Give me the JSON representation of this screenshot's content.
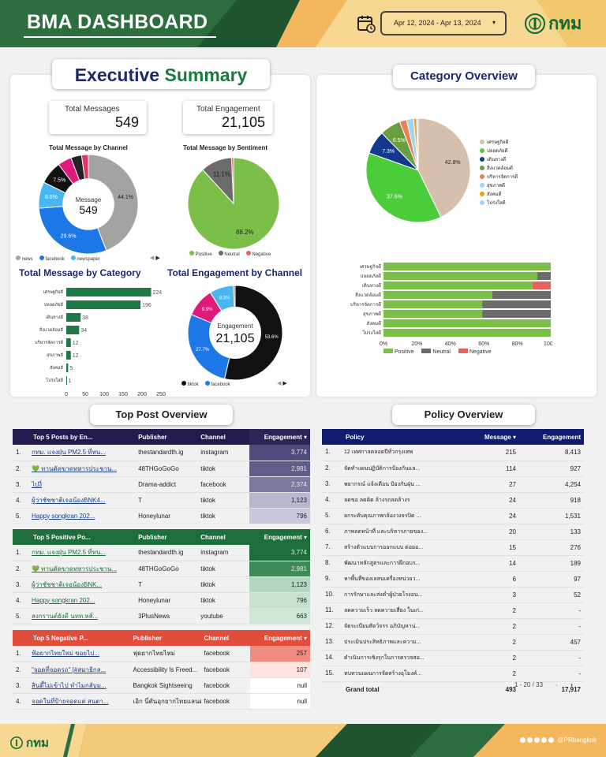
{
  "header": {
    "title": "BMA DASHBOARD",
    "date_range": "Apr 12, 2024 - Apr 13, 2024",
    "logo_text": "กทม"
  },
  "exec": {
    "title_a": "Executive",
    "title_b": "Summary"
  },
  "kpis": {
    "total_messages_label": "Total Messages",
    "total_messages": "549",
    "total_engagement_label": "Total Engagement",
    "total_engagement": "21,105"
  },
  "channel_chart": {
    "title": "Total Message by Channel",
    "center_label": "Message",
    "center_value": "549",
    "legend": [
      "news",
      "facebook",
      "newspaper"
    ],
    "chart_data": {
      "type": "pie",
      "slices": [
        {
          "label": "news",
          "value": 44.1,
          "color": "#a3a3a3"
        },
        {
          "label": "facebook",
          "value": 29.6,
          "color": "#1e77e6"
        },
        {
          "label": "newspaper",
          "value": 8.6,
          "color": "#48b6f0"
        },
        {
          "label": "",
          "value": 7.5,
          "color": "#111111"
        },
        {
          "label": "",
          "value": 4.5,
          "color": "#e0197d"
        },
        {
          "label": "",
          "value": 3.5,
          "color": "#222222"
        },
        {
          "label": "",
          "value": 2.2,
          "color": "#d9366a"
        }
      ],
      "labels": [
        "44.1%",
        "29.6%",
        "8.6%",
        "7.5%"
      ]
    }
  },
  "sentiment_chart": {
    "title": "Total Message by Sentiment",
    "legend": [
      "Positive",
      "Neutral",
      "Negative"
    ],
    "legend_colors": [
      "#76bc43",
      "#6b6b6b",
      "#e9605d"
    ],
    "chart_data": {
      "type": "pie",
      "slices": [
        {
          "label": "Positive",
          "value": 88.2,
          "color": "#7cbf48"
        },
        {
          "label": "Neutral",
          "value": 11.1,
          "color": "#6b6b6b"
        },
        {
          "label": "Negative",
          "value": 0.7,
          "color": "#e9605d"
        }
      ],
      "labels": [
        "88.2%",
        "11.1%"
      ]
    }
  },
  "category_bar": {
    "title": "Total Message by Category",
    "chart_data": {
      "type": "bar",
      "categories": [
        "เศรษฐกิจดี",
        "ปลอดภัยดี",
        "เดินทางดี",
        "สิ่งแวดล้อมดี",
        "บริหารจัดการดี",
        "สุขภาพดี",
        "สังคมดี",
        "โปร่งใสดี"
      ],
      "values": [
        224,
        196,
        38,
        34,
        12,
        12,
        5,
        1
      ],
      "ylim": [
        0,
        250
      ],
      "ticks": [
        "0",
        "50",
        "100",
        "150",
        "200",
        "250"
      ]
    }
  },
  "engagement_chart": {
    "title": "Total Engagement by Channel",
    "center_label": "Engagement",
    "center_value": "21,105",
    "legend": [
      "tiktok",
      "facebook"
    ],
    "chart_data": {
      "type": "pie",
      "slices": [
        {
          "label": "tiktok",
          "value": 53.6,
          "color": "#111111"
        },
        {
          "label": "facebook",
          "value": 27.7,
          "color": "#1e77e6"
        },
        {
          "label": "",
          "value": 9.9,
          "color": "#e0197d"
        },
        {
          "label": "",
          "value": 8.3,
          "color": "#48b6f0"
        },
        {
          "label": "",
          "value": 0.5,
          "color": "#d9366a"
        }
      ],
      "labels": [
        "53.6%",
        "27.7%",
        "9.9%",
        "8.3%"
      ]
    }
  },
  "category_overview": {
    "title": "Category Overview",
    "legend": [
      "เศรษฐกิจดี",
      "ปลอดภัยดี",
      "เดินทางดี",
      "สิ่งแวดล้อมดี",
      "บริหารจัดการดี",
      "สุขภาพดี",
      "สังคมดี",
      "โปร่งใสดี"
    ],
    "legend_colors": [
      "#d7bfae",
      "#4bcc3a",
      "#13388e",
      "#6b9e3f",
      "#e9805d",
      "#9fd6e8",
      "#f39a12",
      "#a6d4f2"
    ],
    "pie": {
      "type": "pie",
      "slices": [
        {
          "label": "เศรษฐกิจดี",
          "value": 42.8,
          "color": "#d7bfae"
        },
        {
          "label": "ปลอดภัยดี",
          "value": 37.6,
          "color": "#4bcc3a"
        },
        {
          "label": "เดินทางดี",
          "value": 7.3,
          "color": "#13388e"
        },
        {
          "label": "สิ่งแวดล้อมดี",
          "value": 6.5,
          "color": "#6b9e3f"
        },
        {
          "label": "บริหารจัดการดี",
          "value": 2.2,
          "color": "#e9805d"
        },
        {
          "label": "สุขภาพดี",
          "value": 2.2,
          "color": "#9fd6e8"
        },
        {
          "label": "สังคมดี",
          "value": 0.9,
          "color": "#f39a12"
        },
        {
          "label": "โปร่งใสดี",
          "value": 0.5,
          "color": "#a6d4f2"
        }
      ],
      "labels": [
        "42.8%",
        "37.6%",
        "7.3%",
        "6.5%"
      ]
    },
    "stacked": {
      "type": "bar",
      "categories": [
        "เศรษฐกิจดี",
        "ปลอดภัยดี",
        "เดินทางดี",
        "สิ่งแวดล้อมดี",
        "บริหารจัดการดี",
        "สุขภาพดี",
        "สังคมดี",
        "โปร่งใสดี"
      ],
      "series": [
        {
          "name": "Positive",
          "color": "#7cbf48",
          "values": [
            100,
            92,
            89,
            65,
            59,
            59,
            100,
            100
          ]
        },
        {
          "name": "Neutral",
          "color": "#6b6b6b",
          "values": [
            0,
            8,
            0,
            35,
            41,
            41,
            0,
            0
          ]
        },
        {
          "name": "Negative",
          "color": "#e9605d",
          "values": [
            0,
            0,
            11,
            0,
            0,
            0,
            0,
            0
          ]
        }
      ],
      "ticks": [
        "0%",
        "20%",
        "40%",
        "60%",
        "80%",
        "100%"
      ]
    }
  },
  "top_post": {
    "title": "Top Post Overview",
    "top5": {
      "headers": [
        "Top 5 Posts by En...",
        "Publisher",
        "Channel",
        "Engagement"
      ],
      "rows": [
        {
          "n": "1.",
          "post": "กทม. แจงฝุ่น PM2.5 ที่หน...",
          "pub": "thestandardth.ig",
          "ch": "instagram",
          "eng": "3,774",
          "shade": "#4b4b7c"
        },
        {
          "n": "2.",
          "post": "💚 ทานตัดขาดทหารประชาน...",
          "pub": "48THGoGoGo",
          "ch": "tiktok",
          "eng": "2,981",
          "shade": "#5e5e8a"
        },
        {
          "n": "3.",
          "post": "ไปงี่",
          "pub": "Drama-addict",
          "ch": "facebook",
          "eng": "2,374",
          "shade": "#7a7aa0"
        },
        {
          "n": "4.",
          "post": "ผู้ว่าชัชชาติเจอน้องBNK4...",
          "pub": "T",
          "ch": "tiktok",
          "eng": "1,123",
          "shade": "#b7b7d0"
        },
        {
          "n": "5.",
          "post": "Happy songkran 202...",
          "pub": "Honeylunar",
          "ch": "tiktok",
          "eng": "796",
          "shade": "#c9c9dc"
        }
      ]
    },
    "positive": {
      "headers": [
        "Top 5 Positive Po...",
        "Publisher",
        "Channel",
        "Engagement"
      ],
      "rows": [
        {
          "n": "1.",
          "post": "กทม. แจงฝุ่น PM2.5 ที่หน...",
          "pub": "thestandardth.ig",
          "ch": "instagram",
          "eng": "3,774",
          "shade": "#1d6e3a"
        },
        {
          "n": "2.",
          "post": "💚 ทานตัดขาดทหารประชาน...",
          "pub": "48THGoGoGo",
          "ch": "tiktok",
          "eng": "2,981",
          "shade": "#3e8a56"
        },
        {
          "n": "3.",
          "post": "ผู้ว่าชัชชาติเจอน้องBNK...",
          "pub": "T",
          "ch": "tiktok",
          "eng": "1,123",
          "shade": "#b4d5bf"
        },
        {
          "n": "4.",
          "post": "Happy songkran 202...",
          "pub": "Honeylunar",
          "ch": "tiktok",
          "eng": "796",
          "shade": "#c8e1cf"
        },
        {
          "n": "5.",
          "post": "สงกรานต์ยังดี นทท.หลั่...",
          "pub": "3PlusNews",
          "ch": "youtube",
          "eng": "663",
          "shade": "#d0e6d6"
        }
      ]
    },
    "negative": {
      "headers": [
        "Top 5 Negative P...",
        "Publisher",
        "Channel",
        "Engagement"
      ],
      "rows": [
        {
          "n": "1.",
          "post": "ฟ้อยากไทยใหม่ ขอยไป...",
          "pub": "ฟุดยากไทยไหม่",
          "ch": "facebook",
          "eng": "257",
          "shade": "#f28b82"
        },
        {
          "n": "2.",
          "post": "\"จอดที่จอดรถ\" [#สมาธิกล...",
          "pub": "Accessibility Is Freed...",
          "ch": "facebook",
          "eng": "107",
          "shade": "#fde3e1"
        },
        {
          "n": "3.",
          "post": "สินดี้ไม่เข้าไป ทำไมกลับม...",
          "pub": "Bangkok Sightseeing",
          "ch": "facebook",
          "eng": "null",
          "shade": "#ffffff"
        },
        {
          "n": "4.",
          "post": "จอดในที่ป้ายจอดแต่ สนตา...",
          "pub": "เอิก นี่ตันอุกยากไทยแลนด์",
          "ch": "facebook",
          "eng": "null",
          "shade": "#ffffff"
        }
      ]
    }
  },
  "policy": {
    "title": "Policy Overview",
    "headers": [
      "Policy",
      "Message",
      "Engagement"
    ],
    "rows": [
      {
        "n": "1.",
        "p": "12 เทศกาลตลอดปีทั่วกรุงเทพ",
        "m": "215",
        "e": "8,413"
      },
      {
        "n": "2.",
        "p": "จัดทำแผนปฏิบัติการป้องกันแล...",
        "m": "114",
        "e": "927"
      },
      {
        "n": "3.",
        "p": "พยากรณ์ แจ้งเตือน ป้องกันฝุ่น ...",
        "m": "27",
        "e": "4,254"
      },
      {
        "n": "4.",
        "p": "ลดขอ ลดติด ล้างรถลดล้างร",
        "m": "24",
        "e": "918"
      },
      {
        "n": "5.",
        "p": "ยกระดับคุณภาพกล้องวงจรปิด ...",
        "m": "24",
        "e": "1,531"
      },
      {
        "n": "6.",
        "p": "ภาพลดหน้าที่ และบริหารภายของ...",
        "m": "20",
        "e": "133"
      },
      {
        "n": "7.",
        "p": "สร้างตัวแบบการออกแบบ ต่อยอ...",
        "m": "15",
        "e": "276"
      },
      {
        "n": "8.",
        "p": "พัฒนาหลักสูตรและการฝึกอบร...",
        "m": "14",
        "e": "189"
      },
      {
        "n": "9.",
        "p": "หาพื้นที่ของเลสนเครื่องหน่วยว...",
        "m": "6",
        "e": "97"
      },
      {
        "n": "10.",
        "p": "การรักษาและส่งต่ำผู้ป่วยโรงอน...",
        "m": "3",
        "e": "52"
      },
      {
        "n": "11.",
        "p": "ลดความเร็ว ลดความเสี่ยง ในเก่...",
        "m": "2",
        "e": "-"
      },
      {
        "n": "12.",
        "p": "จัดระเบียบสัตว์จรร อภิบัญหาน่...",
        "m": "2",
        "e": "-"
      },
      {
        "n": "13.",
        "p": "ประเมินประสิทธิภาพและความ...",
        "m": "2",
        "e": "457"
      },
      {
        "n": "14.",
        "p": "ดำเนินการเชิงรุกในการตรวจสอ...",
        "m": "2",
        "e": "-"
      },
      {
        "n": "15.",
        "p": "ทบทวนแผนการจัดสร้างอุโมงค์...",
        "m": "2",
        "e": "-"
      }
    ],
    "total_label": "Grand total",
    "total_m": "493",
    "total_e": "17,917",
    "pager": "1 - 20 / 33"
  },
  "footer": {
    "logo_text": "กทม",
    "handle": "@PRbangkok"
  }
}
